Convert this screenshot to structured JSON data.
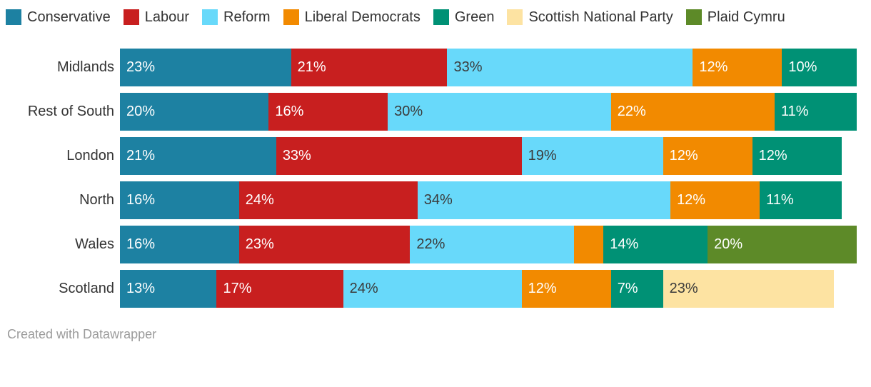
{
  "legend": {
    "position": "top",
    "items_source": "chart_data.series"
  },
  "chart_data": {
    "type": "bar",
    "stacked": true,
    "orientation": "horizontal",
    "unit": "%",
    "xlim": [
      0,
      100
    ],
    "grid": false,
    "legend_position": "top",
    "label_min_pct": 5,
    "categories": [
      "Midlands",
      "Rest of South",
      "London",
      "North",
      "Wales",
      "Scotland"
    ],
    "series": [
      {
        "name": "Conservative",
        "color": "#1d81a2",
        "label_color": "#ffffff",
        "values": [
          23,
          20,
          21,
          16,
          16,
          13
        ]
      },
      {
        "name": "Labour",
        "color": "#c81f1f",
        "label_color": "#ffffff",
        "values": [
          21,
          16,
          33,
          24,
          23,
          17
        ]
      },
      {
        "name": "Reform",
        "color": "#68d9fa",
        "label_color": "#3b3b3b",
        "values": [
          33,
          30,
          19,
          34,
          22,
          24
        ]
      },
      {
        "name": "Liberal Democrats",
        "color": "#f28a00",
        "label_color": "#ffffff",
        "values": [
          12,
          22,
          12,
          12,
          4,
          12
        ]
      },
      {
        "name": "Green",
        "color": "#009175",
        "label_color": "#ffffff",
        "values": [
          10,
          11,
          12,
          11,
          14,
          7
        ]
      },
      {
        "name": "Scottish National Party",
        "color": "#fde3a2",
        "label_color": "#3b3b3b",
        "values": [
          0,
          0,
          0,
          0,
          0,
          23
        ]
      },
      {
        "name": "Plaid Cymru",
        "color": "#5d8a28",
        "label_color": "#ffffff",
        "values": [
          0,
          0,
          0,
          0,
          20,
          0
        ]
      }
    ]
  },
  "footer": {
    "credit": "Created with Datawrapper"
  }
}
